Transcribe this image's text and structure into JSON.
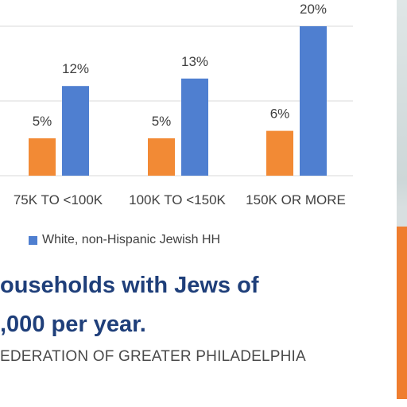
{
  "chart_data": {
    "type": "bar",
    "categories": [
      "75K TO <100K",
      "100K TO <150K",
      "150K OR MORE"
    ],
    "series": [
      {
        "name": "",
        "color": "#f28a35",
        "values": [
          5,
          5,
          6
        ],
        "labels": [
          "5%",
          "5%",
          "6%"
        ]
      },
      {
        "name": "White, non-Hispanic Jewish HH",
        "color": "#4f7fd0",
        "values": [
          12,
          13,
          20
        ],
        "labels": [
          "12%",
          "13%",
          "20%"
        ]
      }
    ],
    "ylim": [
      0,
      20
    ],
    "grid": true,
    "legend_position": "bottom-left",
    "title": "",
    "xlabel": "",
    "ylabel": ""
  },
  "caption": {
    "line1": "ouseholds with Jews of",
    "line2": ",000 per year."
  },
  "source_text": "EDERATION OF GREATER PHILADELPHIA",
  "colors": {
    "caption": "#1f3f7a",
    "source": "#4a4a4a",
    "gridline": "#d9d9d9"
  }
}
